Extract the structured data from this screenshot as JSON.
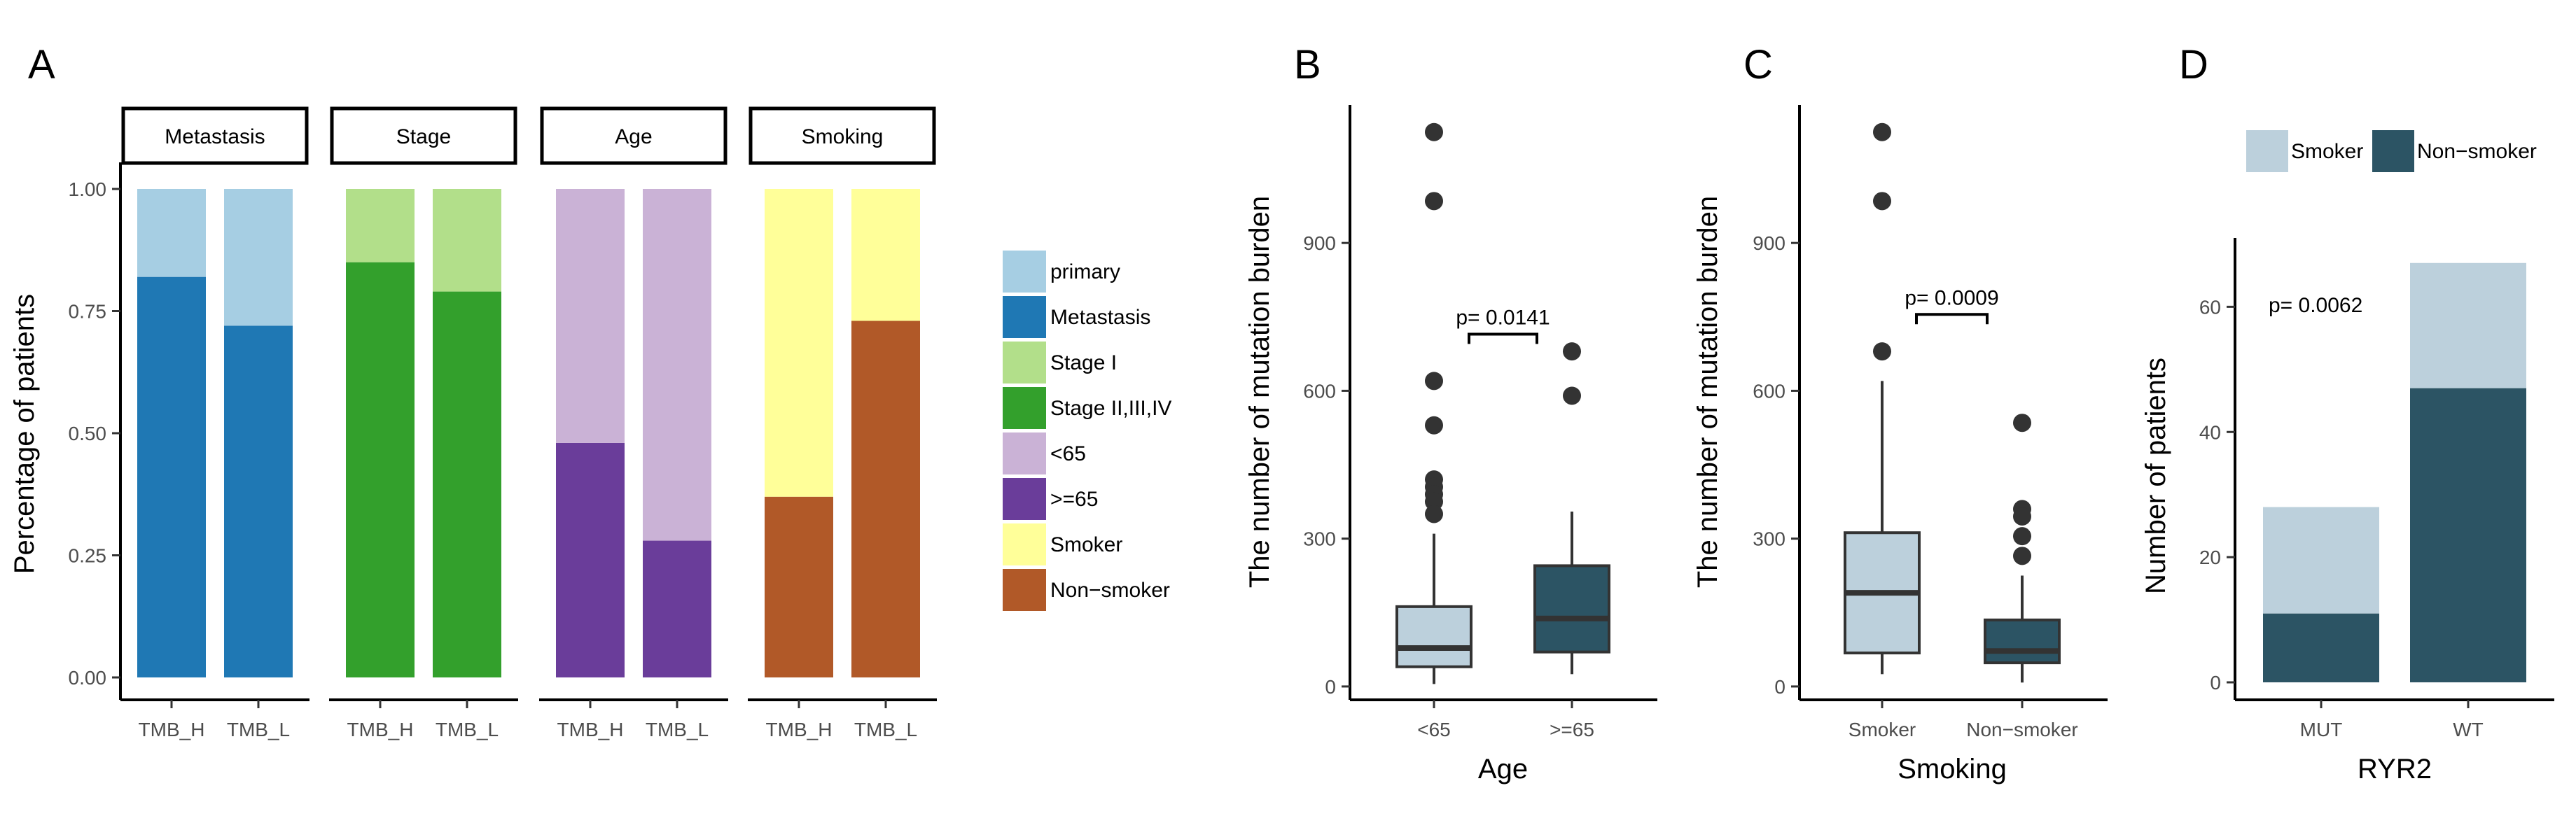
{
  "panels": {
    "A": {
      "letter": "A"
    },
    "B": {
      "letter": "B"
    },
    "C": {
      "letter": "C"
    },
    "D": {
      "letter": "D"
    }
  },
  "chart_data": [
    {
      "id": "A",
      "type": "bar",
      "stacked": true,
      "ylabel": "Percentage of patients",
      "ylim": [
        0,
        1
      ],
      "yticks": [
        "0.00",
        "0.25",
        "0.50",
        "0.75",
        "1.00"
      ],
      "facets": [
        {
          "name": "Metastasis",
          "categories": [
            "TMB_H",
            "TMB_L"
          ],
          "series": [
            {
              "name": "Metastasis",
              "color": "#1f78b4",
              "values": [
                0.82,
                0.72
              ]
            },
            {
              "name": "primary",
              "color": "#a6cee3",
              "values": [
                0.18,
                0.28
              ]
            }
          ]
        },
        {
          "name": "Stage",
          "categories": [
            "TMB_H",
            "TMB_L"
          ],
          "series": [
            {
              "name": "Stage II,III,IV",
              "color": "#33a02c",
              "values": [
                0.85,
                0.79
              ]
            },
            {
              "name": "Stage I",
              "color": "#b2df8a",
              "values": [
                0.15,
                0.21
              ]
            }
          ]
        },
        {
          "name": "Age",
          "categories": [
            "TMB_H",
            "TMB_L"
          ],
          "series": [
            {
              "name": ">=65",
              "color": "#6a3d9a",
              "values": [
                0.48,
                0.28
              ]
            },
            {
              "name": "<65",
              "color": "#cab2d6",
              "values": [
                0.52,
                0.72
              ]
            }
          ]
        },
        {
          "name": "Smoking",
          "categories": [
            "TMB_H",
            "TMB_L"
          ],
          "series": [
            {
              "name": "Non-smoker",
              "color": "#b15928",
              "values": [
                0.37,
                0.73
              ]
            },
            {
              "name": "Smoker",
              "color": "#ffff99",
              "values": [
                0.63,
                0.27
              ]
            }
          ]
        }
      ],
      "legend": [
        {
          "label": "primary",
          "color": "#a6cee3"
        },
        {
          "label": "Metastasis",
          "color": "#1f78b4"
        },
        {
          "label": "Stage I",
          "color": "#b2df8a"
        },
        {
          "label": "Stage II,III,IV",
          "color": "#33a02c"
        },
        {
          "label": "<65",
          "color": "#cab2d6"
        },
        {
          "label": ">=65",
          "color": "#6a3d9a"
        },
        {
          "label": "Smoker",
          "color": "#ffff99"
        },
        {
          "label": "Non−smoker",
          "color": "#b15928"
        }
      ]
    },
    {
      "id": "B",
      "type": "box",
      "xlabel": "Age",
      "ylabel": "The number of mutation burden",
      "ylim": [
        -20,
        1180
      ],
      "yticks": [
        0,
        300,
        600,
        900
      ],
      "groups": [
        {
          "name": "<65",
          "color": "#bcd0dc",
          "q1": 40,
          "median": 78,
          "q3": 162,
          "whisker_low": 5,
          "whisker_high": 310,
          "outliers": [
            1125,
            985,
            620,
            530,
            420,
            405,
            390,
            375,
            350
          ]
        },
        {
          "name": ">=65",
          "color": "#2c5464",
          "q1": 70,
          "median": 138,
          "q3": 245,
          "whisker_low": 25,
          "whisker_high": 355,
          "outliers": [
            680,
            590
          ]
        }
      ],
      "annotation": {
        "text": "p= 0.0141",
        "bracket_y": 715
      }
    },
    {
      "id": "C",
      "type": "box",
      "xlabel": "Smoking",
      "ylabel": "The number of mutation burden",
      "ylim": [
        -20,
        1180
      ],
      "yticks": [
        0,
        300,
        600,
        900
      ],
      "groups": [
        {
          "name": "Smoker",
          "color": "#bcd0dc",
          "q1": 68,
          "median": 190,
          "q3": 312,
          "whisker_low": 25,
          "whisker_high": 620,
          "outliers": [
            1125,
            985,
            680
          ]
        },
        {
          "name": "Non−smoker",
          "color": "#2c5464",
          "q1": 48,
          "median": 72,
          "q3": 135,
          "whisker_low": 8,
          "whisker_high": 225,
          "outliers": [
            535,
            360,
            345,
            305,
            265
          ]
        }
      ],
      "annotation": {
        "text": "p= 0.0009",
        "bracket_y": 755
      }
    },
    {
      "id": "D",
      "type": "bar",
      "stacked": true,
      "xlabel": "RYR2",
      "ylabel": "Number of patients",
      "ylim": [
        0,
        71
      ],
      "yticks": [
        0,
        20,
        40,
        60
      ],
      "categories": [
        "MUT",
        "WT"
      ],
      "series": [
        {
          "name": "Non−smoker",
          "color": "#2c5464",
          "values": [
            11,
            47
          ]
        },
        {
          "name": "Smoker",
          "color": "#bcd0dc",
          "values": [
            17,
            20
          ]
        }
      ],
      "legend": [
        {
          "label": "Smoker",
          "color": "#bcd0dc"
        },
        {
          "label": "Non−smoker",
          "color": "#2c5464"
        }
      ],
      "annotation": {
        "text": "p= 0.0062"
      }
    }
  ]
}
